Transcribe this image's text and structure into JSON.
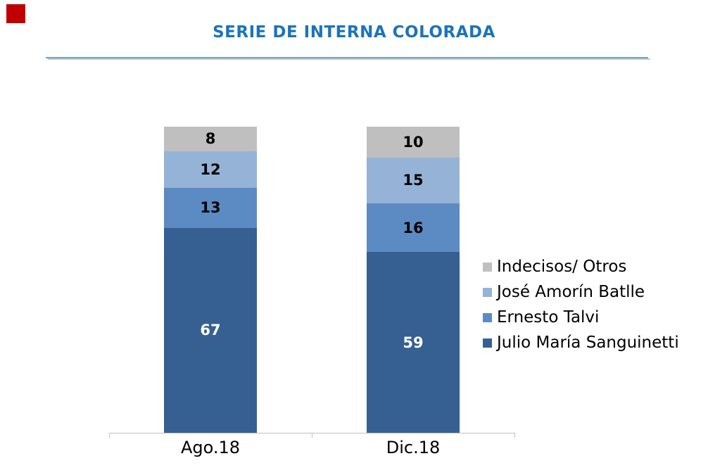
{
  "page": {
    "background": "#ffffff"
  },
  "corner_marker": {
    "color": "#c00000"
  },
  "header": {
    "title_color": "#1b74bc",
    "rule_color": "#6aa4cd",
    "rule_shadow_color": "#c9c9c9"
  },
  "chart_data": {
    "type": "bar",
    "stacked": true,
    "title": "SERIE DE INTERNA COLORADA",
    "categories": [
      "Ago.18",
      "Dic.18"
    ],
    "series": [
      {
        "name": "Julio María Sanguinetti",
        "color": "#366092",
        "label_color": "#ffffff",
        "values": [
          67,
          59
        ]
      },
      {
        "name": "Ernesto Talvi",
        "color": "#5c8bc4",
        "label_color": "#000000",
        "values": [
          13,
          16
        ]
      },
      {
        "name": "José Amorín Batlle",
        "color": "#95b3d7",
        "label_color": "#000000",
        "values": [
          12,
          15
        ]
      },
      {
        "name": "Indecisos/ Otros",
        "color": "#bfbfbf",
        "label_color": "#000000",
        "values": [
          8,
          10
        ]
      }
    ],
    "legend": [
      "Indecisos/ Otros",
      "José Amorín Batlle",
      "Ernesto Talvi",
      "Julio María Sanguinetti"
    ],
    "legend_position": "right",
    "xlabel": "",
    "ylabel": "",
    "ylim": [
      0,
      100
    ],
    "grid": false,
    "data_labels": true,
    "axis_color": "#bfbfbf"
  }
}
